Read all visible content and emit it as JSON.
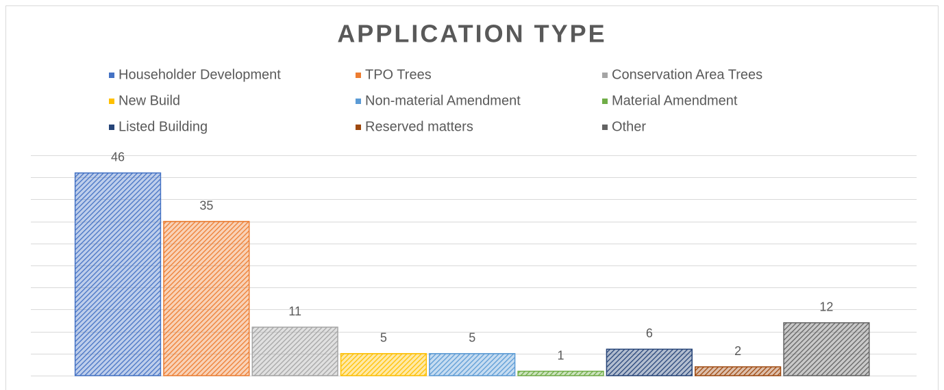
{
  "chart_data": {
    "type": "bar",
    "title": "APPLICATION TYPE",
    "categories": [
      null
    ],
    "series": [
      {
        "name": "Householder Development",
        "color": "#4472c4",
        "values": [
          46
        ]
      },
      {
        "name": "TPO Trees",
        "color": "#ed7d31",
        "values": [
          35
        ]
      },
      {
        "name": "Conservation Area Trees",
        "color": "#a5a5a5",
        "values": [
          11
        ]
      },
      {
        "name": "New Build",
        "color": "#ffc000",
        "values": [
          5
        ]
      },
      {
        "name": "Non-material Amendment",
        "color": "#5b9bd5",
        "values": [
          5
        ]
      },
      {
        "name": "Material Amendment",
        "color": "#70ad47",
        "values": [
          1
        ]
      },
      {
        "name": "Listed Building",
        "color": "#264478",
        "values": [
          6
        ]
      },
      {
        "name": "Reserved matters",
        "color": "#9e480e",
        "values": [
          2
        ]
      },
      {
        "name": "Other",
        "color": "#636363",
        "values": [
          12
        ]
      }
    ],
    "ylim": [
      0,
      50
    ],
    "yticks": [
      0,
      5,
      10,
      15,
      20,
      25,
      30,
      35,
      40,
      45,
      50
    ],
    "grid": true,
    "legend": "top"
  }
}
